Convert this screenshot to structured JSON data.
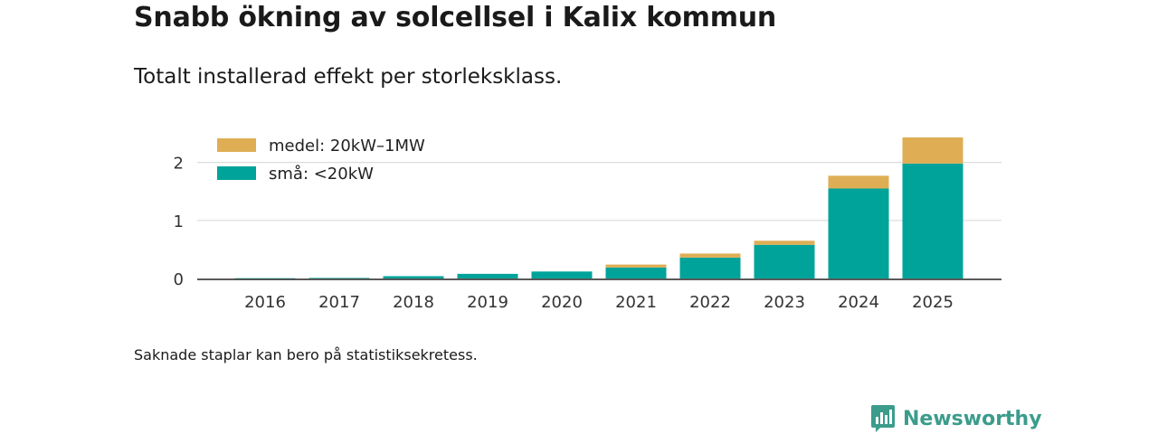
{
  "title": "Snabb ökning av solcellsel i Kalix kommun",
  "subtitle": "Totalt installerad effekt per storleksklass.",
  "note": "Saknade staplar kan bero på statistiksekretess.",
  "brand": {
    "name": "Newsworthy",
    "icon": "newsworthy-bar-chart-icon",
    "color": "#3b9c8c"
  },
  "chart_data": {
    "type": "bar",
    "stacked": true,
    "categories": [
      "2016",
      "2017",
      "2018",
      "2019",
      "2020",
      "2021",
      "2022",
      "2023",
      "2024",
      "2025"
    ],
    "series": [
      {
        "name": "små: <20kW",
        "color": "#00a39a",
        "values": [
          0.005,
          0.01,
          0.04,
          0.08,
          0.12,
          0.19,
          0.36,
          0.58,
          1.55,
          1.98
        ]
      },
      {
        "name": "medel: 20kW–1MW",
        "color": "#dfae54",
        "values": [
          0,
          0,
          0,
          0,
          0,
          0.05,
          0.07,
          0.07,
          0.22,
          0.45
        ]
      }
    ],
    "ylim": [
      0,
      2.4
    ],
    "yticks": [
      0,
      1,
      2
    ],
    "xlabel": "",
    "ylabel": "",
    "grid": true,
    "legend_position": "top-left"
  }
}
